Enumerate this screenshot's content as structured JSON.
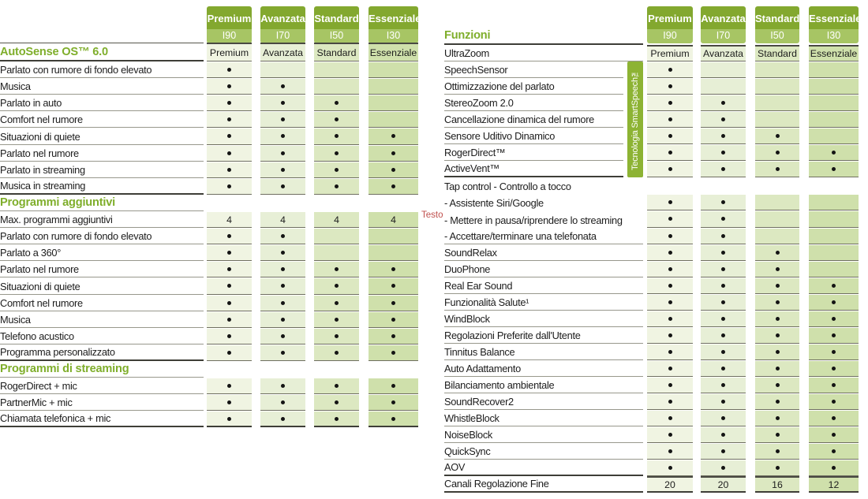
{
  "tiers": [
    {
      "name": "Premium",
      "level": "I90"
    },
    {
      "name": "Avanzata",
      "level": "I70"
    },
    {
      "name": "Standard",
      "level": "I50"
    },
    {
      "name": "Essenziale",
      "level": "I30"
    }
  ],
  "annotation": {
    "label": "Testo"
  },
  "colors": {
    "accent_green": "#7fae2b",
    "header_top_green": "#83a82f",
    "header_bottom_green": "#a7c564",
    "band_green": "#8db334",
    "column_premium": "#f0f4e2",
    "column_avanzata": "#e7efd6",
    "column_standard": "#dce8c1",
    "column_essenziale": "#cfe0ab",
    "annotation_red": "#c0504d"
  },
  "left_table": {
    "rows": [
      {
        "label": "AutoSense OS™ 6.0",
        "style": "title",
        "cells": [
          "Premium",
          "Avanzata",
          "Standard",
          "Essenziale"
        ],
        "line": "d",
        "ct": true
      },
      {
        "label": "Parlato con rumore di fondo elevato",
        "cells": [
          "d",
          "",
          "",
          ""
        ],
        "line": "g"
      },
      {
        "label": "Musica",
        "cells": [
          "d",
          "d",
          "",
          ""
        ],
        "line": "g"
      },
      {
        "label": "Parlato in auto",
        "cells": [
          "d",
          "d",
          "d",
          ""
        ],
        "line": "g"
      },
      {
        "label": "Comfort nel rumore",
        "cells": [
          "d",
          "d",
          "d",
          ""
        ],
        "line": "g"
      },
      {
        "label": "Situazioni di quiete",
        "cells": [
          "d",
          "d",
          "d",
          "d"
        ],
        "line": "g"
      },
      {
        "label": "Parlato nel rumore",
        "cells": [
          "d",
          "d",
          "d",
          "d"
        ],
        "line": "g"
      },
      {
        "label": "Parlato in streaming",
        "cells": [
          "d",
          "d",
          "d",
          "d"
        ],
        "line": "g"
      },
      {
        "label": "Musica in streaming",
        "cells": [
          "d",
          "d",
          "d",
          "d"
        ],
        "line": "d"
      },
      {
        "label": "Programmi aggiuntivi",
        "style": "section",
        "cells": null,
        "line": "g"
      },
      {
        "label": "Max. programmi aggiuntivi",
        "cells": [
          "4",
          "4",
          "4",
          "4"
        ],
        "line": "g"
      },
      {
        "label": "Parlato con rumore di fondo elevato",
        "cells": [
          "d",
          "d",
          "",
          ""
        ],
        "line": "g"
      },
      {
        "label": "Parlato a 360°",
        "cells": [
          "d",
          "d",
          "",
          ""
        ],
        "line": "g"
      },
      {
        "label": "Parlato nel rumore",
        "cells": [
          "d",
          "d",
          "d",
          "d"
        ],
        "line": "g"
      },
      {
        "label": "Situazioni di quiete",
        "cells": [
          "d",
          "d",
          "d",
          "d"
        ],
        "line": "g"
      },
      {
        "label": "Comfort nel rumore",
        "cells": [
          "d",
          "d",
          "d",
          "d"
        ],
        "line": "g"
      },
      {
        "label": "Musica",
        "cells": [
          "d",
          "d",
          "d",
          "d"
        ],
        "line": "g"
      },
      {
        "label": "Telefono acustico",
        "cells": [
          "d",
          "d",
          "d",
          "d"
        ],
        "line": "g"
      },
      {
        "label": "Programma personalizzato",
        "cells": [
          "d",
          "d",
          "d",
          "d"
        ],
        "line": "d"
      },
      {
        "label": "Programmi di streaming",
        "style": "section",
        "cells": null,
        "line": "g"
      },
      {
        "label": "RogerDirect + mic",
        "cells": [
          "d",
          "d",
          "d",
          "d"
        ],
        "line": "g"
      },
      {
        "label": "PartnerMic + mic",
        "cells": [
          "d",
          "d",
          "d",
          "d"
        ],
        "line": "g"
      },
      {
        "label": "Chiamata telefonica + mic",
        "cells": [
          "d",
          "d",
          "d",
          "d"
        ],
        "line": "d",
        "cb": true
      }
    ]
  },
  "right_table": {
    "title": "Funzioni",
    "band_label": "Tecnologia SmartSpeech™",
    "rows": [
      {
        "label": "UltraZoom",
        "cells": [
          "Premium",
          "Avanzata",
          "Standard",
          "Essenziale"
        ],
        "line": "g",
        "ct": true
      },
      {
        "label": "SpeechSensor",
        "cells": [
          "d",
          "",
          "",
          ""
        ],
        "line": "g",
        "band": true
      },
      {
        "label": "Ottimizzazione del parlato",
        "cells": [
          "d",
          "",
          "",
          ""
        ],
        "line": "g",
        "band": true
      },
      {
        "label": "StereoZoom 2.0",
        "cells": [
          "d",
          "d",
          "",
          ""
        ],
        "line": "g",
        "band": true
      },
      {
        "label": "Cancellazione dinamica del rumore",
        "cells": [
          "d",
          "d",
          "",
          ""
        ],
        "line": "g",
        "band": true
      },
      {
        "label": "Sensore Uditivo Dinamico",
        "cells": [
          "d",
          "d",
          "d",
          ""
        ],
        "line": "g",
        "band": true
      },
      {
        "label": "RogerDirect™",
        "cells": [
          "d",
          "d",
          "d",
          "d"
        ],
        "line": "g",
        "band": true
      },
      {
        "label": "ActiveVent™",
        "cells": [
          "d",
          "d",
          "d",
          "d"
        ],
        "line": "d",
        "band": true
      },
      {
        "label": "Tap control - Controllo a tocco",
        "cells": null,
        "line": "n"
      },
      {
        "label": "- Assistente Siri/Google",
        "cells": [
          "d",
          "d",
          "",
          ""
        ],
        "line": "n"
      },
      {
        "label": "- Mettere in pausa/riprendere lo streaming",
        "cells": [
          "d",
          "d",
          "",
          ""
        ],
        "line": "n"
      },
      {
        "label": "- Accettare/terminare una telefonata",
        "cells": [
          "d",
          "d",
          "",
          ""
        ],
        "line": "g"
      },
      {
        "label": "SoundRelax",
        "cells": [
          "d",
          "d",
          "d",
          ""
        ],
        "line": "g"
      },
      {
        "label": "DuoPhone",
        "cells": [
          "d",
          "d",
          "d",
          ""
        ],
        "line": "g"
      },
      {
        "label": "Real Ear Sound",
        "cells": [
          "d",
          "d",
          "d",
          "d"
        ],
        "line": "g"
      },
      {
        "label": "Funzionalità Salute¹",
        "cells": [
          "d",
          "d",
          "d",
          "d"
        ],
        "line": "g"
      },
      {
        "label": "WindBlock",
        "cells": [
          "d",
          "d",
          "d",
          "d"
        ],
        "line": "g"
      },
      {
        "label": "Regolazioni Preferite dall'Utente",
        "cells": [
          "d",
          "d",
          "d",
          "d"
        ],
        "line": "g"
      },
      {
        "label": "Tinnitus Balance",
        "cells": [
          "d",
          "d",
          "d",
          "d"
        ],
        "line": "g"
      },
      {
        "label": "Auto Adattamento",
        "cells": [
          "d",
          "d",
          "d",
          "d"
        ],
        "line": "g"
      },
      {
        "label": "Bilanciamento ambientale",
        "cells": [
          "d",
          "d",
          "d",
          "d"
        ],
        "line": "g"
      },
      {
        "label": "SoundRecover2",
        "cells": [
          "d",
          "d",
          "d",
          "d"
        ],
        "line": "g"
      },
      {
        "label": "WhistleBlock",
        "cells": [
          "d",
          "d",
          "d",
          "d"
        ],
        "line": "g"
      },
      {
        "label": "NoiseBlock",
        "cells": [
          "d",
          "d",
          "d",
          "d"
        ],
        "line": "g"
      },
      {
        "label": "QuickSync",
        "cells": [
          "d",
          "d",
          "d",
          "d"
        ],
        "line": "g"
      },
      {
        "label": "AOV",
        "cells": [
          "d",
          "d",
          "d",
          "d"
        ],
        "line": "d"
      },
      {
        "label": "Canali Regolazione Fine",
        "cells": [
          "20",
          "20",
          "16",
          "12"
        ],
        "line": "d",
        "ct": true,
        "cb": true
      }
    ]
  }
}
